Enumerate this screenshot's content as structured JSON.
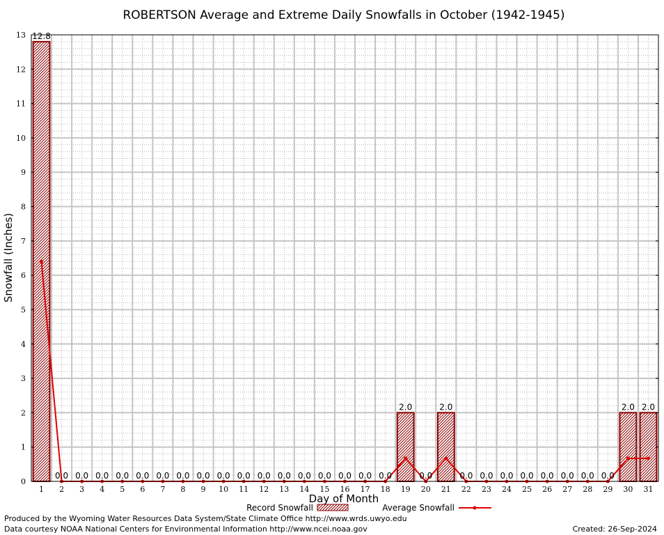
{
  "chart_data": {
    "type": "bar",
    "title": "ROBERTSON Average and Extreme Daily Snowfalls in October (1942-1945)",
    "xlabel": "Day of Month",
    "ylabel": "Snowfall (Inches)",
    "categories": [
      "1",
      "2",
      "3",
      "4",
      "5",
      "6",
      "7",
      "8",
      "9",
      "10",
      "11",
      "12",
      "13",
      "14",
      "15",
      "16",
      "17",
      "18",
      "19",
      "20",
      "21",
      "22",
      "23",
      "24",
      "25",
      "26",
      "27",
      "28",
      "29",
      "30",
      "31"
    ],
    "ylim": [
      0,
      13
    ],
    "yticks": [
      "0",
      "1",
      "2",
      "3",
      "4",
      "5",
      "6",
      "7",
      "8",
      "9",
      "10",
      "11",
      "12",
      "13"
    ],
    "grid": true,
    "legend_position": "bottom",
    "series": [
      {
        "name": "Record Snowfall",
        "type": "bar",
        "values": [
          12.8,
          0.0,
          0.0,
          0.0,
          0.0,
          0.0,
          0.0,
          0.0,
          0.0,
          0.0,
          0.0,
          0.0,
          0.0,
          0.0,
          0.0,
          0.0,
          0.0,
          0.0,
          2.0,
          0.0,
          2.0,
          0.0,
          0.0,
          0.0,
          0.0,
          0.0,
          0.0,
          0.0,
          0.0,
          2.0,
          2.0
        ],
        "labels": [
          "12.8",
          "0.0",
          "0.0",
          "0.0",
          "0.0",
          "0.0",
          "0.0",
          "0.0",
          "0.0",
          "0.0",
          "0.0",
          "0.0",
          "0.0",
          "0.0",
          "0.0",
          "0.0",
          "0.0",
          "0.0",
          "2.0",
          "0.0",
          "2.0",
          "0.0",
          "0.0",
          "0.0",
          "0.0",
          "0.0",
          "0.0",
          "0.0",
          "0.0",
          "2.0",
          "2.0"
        ],
        "color": "#8b0000"
      },
      {
        "name": "Average Snowfall",
        "type": "line",
        "values": [
          6.4,
          0.0,
          0.0,
          0.0,
          0.0,
          0.0,
          0.0,
          0.0,
          0.0,
          0.0,
          0.0,
          0.0,
          0.0,
          0.0,
          0.0,
          0.0,
          0.0,
          0.0,
          0.67,
          0.0,
          0.67,
          0.0,
          0.0,
          0.0,
          0.0,
          0.0,
          0.0,
          0.0,
          0.0,
          0.67,
          0.67
        ],
        "color": "#dd0000"
      }
    ]
  },
  "footer": {
    "line1": "Produced by the Wyoming Water Resources Data System/State Climate Office http://www.wrds.uwyo.edu",
    "line2": "Data courtesy NOAA National Centers for Environmental Information http://www.ncei.noaa.gov",
    "created": "Created: 26-Sep-2024"
  }
}
